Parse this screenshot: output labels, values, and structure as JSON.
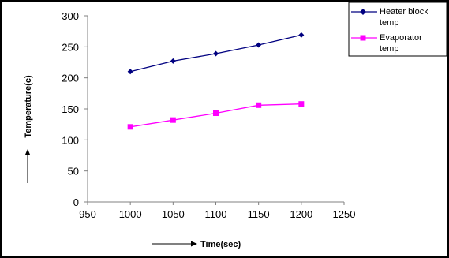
{
  "chart_data": {
    "type": "line",
    "xlabel": "Time(sec)",
    "ylabel": "Temperature(c)",
    "xlim": [
      950,
      1250
    ],
    "ylim": [
      0,
      300
    ],
    "xticks": [
      "950",
      "1000",
      "1050",
      "1100",
      "1150",
      "1200",
      "1250"
    ],
    "yticks": [
      "0",
      "50",
      "100",
      "150",
      "200",
      "250",
      "300"
    ],
    "grid": false,
    "legend_position": "top-right",
    "x": [
      1000,
      1050,
      1100,
      1150,
      1200
    ],
    "series": [
      {
        "name_lines": [
          "Heater block",
          "temp"
        ],
        "values": [
          210,
          227,
          239,
          253,
          269
        ],
        "color": "#000080",
        "marker": "diamond"
      },
      {
        "name_lines": [
          "Evaporator",
          "temp"
        ],
        "values": [
          121,
          132,
          143,
          156,
          158
        ],
        "color": "#ff00ff",
        "marker": "square"
      }
    ]
  }
}
